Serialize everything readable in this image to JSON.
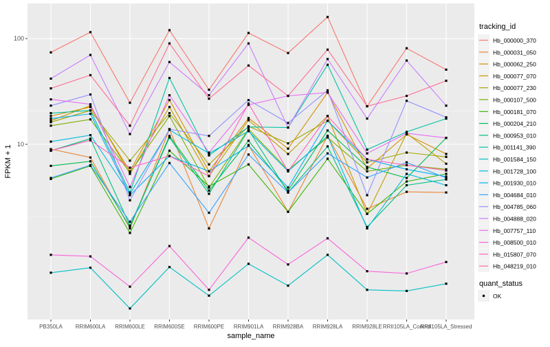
{
  "chart_data": {
    "type": "line",
    "title": "",
    "xlabel": "sample_name",
    "ylabel": "FPKM + 1",
    "yscale": "log10",
    "ylim": [
      0.22,
      215
    ],
    "yticks": [
      10,
      100
    ],
    "ytick_labels": [
      "10",
      "100"
    ],
    "grid": true,
    "legend_position": "right",
    "categories": [
      "PB350LA",
      "RRIM600LA",
      "RRIM600LE",
      "RRIM600SE",
      "RRIM600PE",
      "RRIM901LA",
      "RRIM928BA",
      "RRIM928LA",
      "RRIM928LE",
      "RRII105LA_Control",
      "RRII105LA_Stressed"
    ],
    "legend_title": "tracking_id",
    "series": [
      {
        "name": "Hb_000000_370",
        "color": "#F8766D",
        "values": [
          74,
          115,
          24.7,
          120,
          32.8,
          113,
          73,
          160,
          22.9,
          81,
          50.8
        ]
      },
      {
        "name": "Hb_000031_050",
        "color": "#EA8331",
        "values": [
          9.0,
          7.5,
          1.6,
          13.9,
          1.6,
          9.85,
          2.3,
          12.0,
          2.45,
          3.55,
          3.5
        ]
      },
      {
        "name": "Hb_000062_250",
        "color": "#D89000",
        "values": [
          18.5,
          22.5,
          5.55,
          26.2,
          5.55,
          17.7,
          9.1,
          30.9,
          5.9,
          12.4,
          8.1
        ]
      },
      {
        "name": "Hb_000077_070",
        "color": "#C09B00",
        "values": [
          16.7,
          23.2,
          5.25,
          22.5,
          5.0,
          16.9,
          8.1,
          18.5,
          2.2,
          12.7,
          6.55
        ]
      },
      {
        "name": "Hb_000077_230",
        "color": "#A3A500",
        "values": [
          16.2,
          20.9,
          7.0,
          19.7,
          6.45,
          14.8,
          10.2,
          16.7,
          6.75,
          8.35,
          7.6
        ]
      },
      {
        "name": "Hb_000107_500",
        "color": "#7CAE00",
        "values": [
          15.0,
          17.2,
          5.4,
          18.5,
          3.9,
          13.9,
          5.7,
          11.6,
          5.55,
          6.35,
          5.8
        ]
      },
      {
        "name": "Hb_000181_070",
        "color": "#39B600",
        "values": [
          4.7,
          6.25,
          1.45,
          8.7,
          4.0,
          6.45,
          2.3,
          7.3,
          2.2,
          4.45,
          5.25
        ]
      },
      {
        "name": "Hb_000204_210",
        "color": "#00BB4E",
        "values": [
          6.25,
          6.9,
          1.65,
          12.0,
          3.65,
          10.8,
          3.65,
          13.5,
          6.1,
          4.8,
          11.5
        ]
      },
      {
        "name": "Hb_000953_010",
        "color": "#00BF7D",
        "values": [
          8.7,
          11.3,
          1.7,
          11.6,
          3.4,
          13.7,
          3.5,
          9.55,
          1.65,
          4.1,
          4.65
        ]
      },
      {
        "name": "Hb_001141_390",
        "color": "#00C1A3",
        "values": [
          19.7,
          20.9,
          3.5,
          42.4,
          7.85,
          14.6,
          14.4,
          56.5,
          8.9,
          13.1,
          17.5
        ]
      },
      {
        "name": "Hb_001584_150",
        "color": "#00BFC4",
        "values": [
          0.61,
          0.68,
          0.28,
          0.69,
          0.37,
          0.74,
          0.46,
          0.9,
          0.42,
          0.41,
          0.48
        ]
      },
      {
        "name": "Hb_001728_100",
        "color": "#00BAE0",
        "values": [
          10.6,
          12.2,
          3.4,
          13.7,
          8.2,
          13.3,
          5.55,
          12.0,
          1.6,
          5.25,
          4.1
        ]
      },
      {
        "name": "Hb_001930_010",
        "color": "#00B0F6",
        "values": [
          17.5,
          19.4,
          3.3,
          7.75,
          5.55,
          9.7,
          3.9,
          16.7,
          7.2,
          5.8,
          4.95
        ]
      },
      {
        "name": "Hb_004684_010",
        "color": "#35A2FF",
        "values": [
          4.8,
          6.35,
          1.85,
          6.65,
          2.25,
          8.0,
          3.5,
          8.2,
          4.85,
          6.75,
          4.8
        ]
      },
      {
        "name": "Hb_004785_060",
        "color": "#9590FF",
        "values": [
          23.2,
          29.6,
          2.95,
          13.9,
          12.0,
          26.2,
          15.9,
          32.4,
          3.3,
          25.8,
          18.0
        ]
      },
      {
        "name": "Hb_004888_020",
        "color": "#C77CFF",
        "values": [
          41.8,
          70,
          12.5,
          60.0,
          29.1,
          90,
          14.4,
          64,
          17.5,
          62,
          23.2
        ]
      },
      {
        "name": "Hb_007757_110",
        "color": "#E76BF3",
        "values": [
          26.6,
          23.9,
          3.95,
          29.1,
          8.35,
          23.6,
          28.7,
          30.9,
          8.2,
          12.7,
          11.5
        ]
      },
      {
        "name": "Hb_008500_010",
        "color": "#FA62DB",
        "values": [
          0.9,
          0.87,
          0.45,
          1.09,
          0.42,
          1.31,
          0.73,
          1.29,
          0.63,
          0.6,
          0.77
        ]
      },
      {
        "name": "Hb_015807_070",
        "color": "#FF62BC",
        "values": [
          8.7,
          10.9,
          6.0,
          7.75,
          5.0,
          24.3,
          5.55,
          18.5,
          7.2,
          6.35,
          5.65
        ]
      },
      {
        "name": "Hb_048219_010",
        "color": "#FF6C91",
        "values": [
          33.8,
          45.1,
          15.0,
          90,
          27.0,
          55.6,
          28.7,
          78.6,
          22.9,
          28.7,
          39.9
        ]
      }
    ],
    "point_legend": {
      "title": "quant_status",
      "entries": [
        "OK"
      ]
    }
  }
}
